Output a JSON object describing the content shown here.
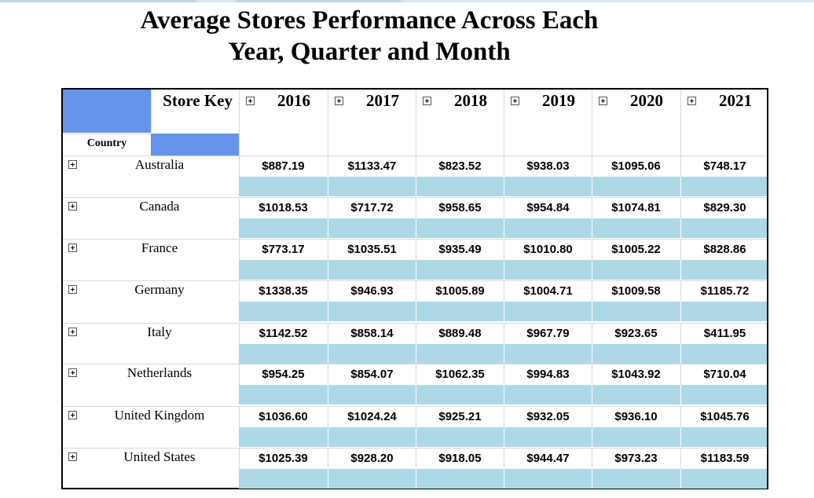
{
  "title": {
    "line1": "Average Stores Performance Across Each",
    "line2": "Year, Quarter and Month"
  },
  "header": {
    "store_key_label": "Store Key",
    "country_label": "Country",
    "years": [
      "2016",
      "2017",
      "2018",
      "2019",
      "2020",
      "2021"
    ]
  },
  "rows": [
    {
      "country": "Australia",
      "values": [
        "$887.19",
        "$1133.47",
        "$823.52",
        "$938.03",
        "$1095.06",
        "$748.17"
      ]
    },
    {
      "country": "Canada",
      "values": [
        "$1018.53",
        "$717.72",
        "$958.65",
        "$954.84",
        "$1074.81",
        "$829.30"
      ]
    },
    {
      "country": "France",
      "values": [
        "$773.17",
        "$1035.51",
        "$935.49",
        "$1010.80",
        "$1005.22",
        "$828.86"
      ]
    },
    {
      "country": "Germany",
      "values": [
        "$1338.35",
        "$946.93",
        "$1005.89",
        "$1004.71",
        "$1009.58",
        "$1185.72"
      ]
    },
    {
      "country": "Italy",
      "values": [
        "$1142.52",
        "$858.14",
        "$889.48",
        "$967.79",
        "$923.65",
        "$411.95"
      ]
    },
    {
      "country": "Netherlands",
      "values": [
        "$954.25",
        "$854.07",
        "$1062.35",
        "$994.83",
        "$1043.92",
        "$710.04"
      ]
    },
    {
      "country": "United Kingdom",
      "values": [
        "$1036.60",
        "$1024.24",
        "$925.21",
        "$932.05",
        "$936.10",
        "$1045.76"
      ]
    },
    {
      "country": "United States",
      "values": [
        "$1025.39",
        "$928.20",
        "$918.05",
        "$944.47",
        "$973.23",
        "$1183.59"
      ]
    }
  ],
  "icons": {
    "expand": "plus-box-icon"
  },
  "colors": {
    "header_blue": "#6495ed",
    "band_blue": "#add8e6"
  }
}
